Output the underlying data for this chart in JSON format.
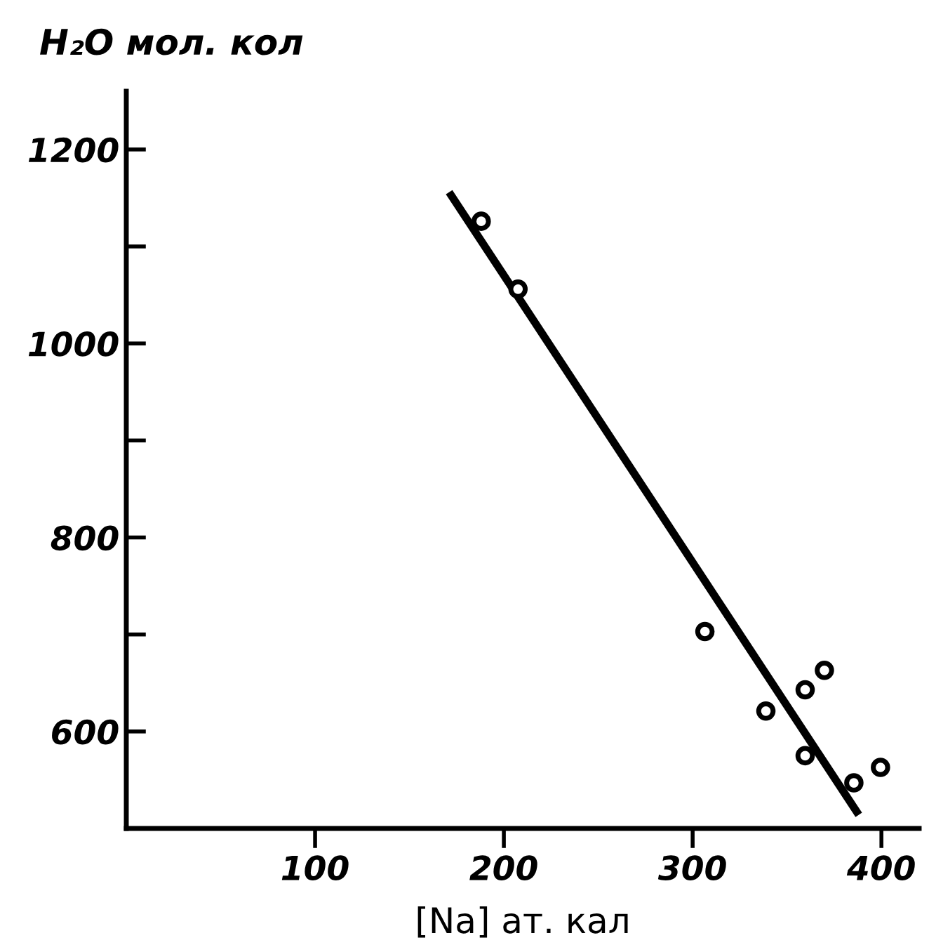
{
  "chart_data": {
    "type": "scatter",
    "xlabel": "[Na] ат. кал",
    "ylabel": "H₂O мол. кол",
    "xlim": [
      0,
      420
    ],
    "ylim": [
      500,
      1260
    ],
    "xticks": [
      100,
      200,
      300,
      400
    ],
    "yticks": [
      600,
      {
        "value": 700,
        "label": null
      },
      800,
      {
        "value": 900,
        "label": null
      },
      1000,
      {
        "value": 1100,
        "label": null
      },
      1200
    ],
    "grid": false,
    "legend": false,
    "series": [
      {
        "marker": "circle",
        "color": "#000000",
        "x": [
          188,
          207.5,
          306.5,
          338.8,
          359.6,
          369.8,
          359.6,
          385.4,
          399.5
        ],
        "values": [
          1126,
          1056,
          703,
          621,
          643,
          663,
          575,
          547,
          563
        ]
      },
      {
        "type": "line",
        "color": "#000000",
        "x": [
          171,
          388
        ],
        "values": [
          1156,
          514
        ],
        "line_style": "solid"
      }
    ]
  }
}
